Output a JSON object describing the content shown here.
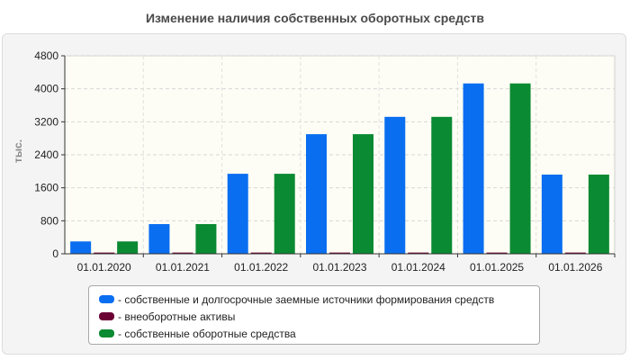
{
  "chart_data": {
    "type": "bar",
    "title": "Изменение наличия собственных оборотных средств",
    "ylabel": "тыс.",
    "xlabel": "",
    "ylim": [
      0,
      4800
    ],
    "yticks": [
      0,
      800,
      1600,
      2400,
      3200,
      4000,
      4800
    ],
    "grid": true,
    "legend_position": "bottom",
    "categories": [
      "01.01.2020",
      "01.01.2021",
      "01.01.2022",
      "01.01.2023",
      "01.01.2024",
      "01.01.2025",
      "01.01.2026"
    ],
    "series": [
      {
        "name": "- собственные и долгосрочные заемные источники формирования средств",
        "color": "#0a6ef0",
        "values": [
          300,
          720,
          1940,
          2900,
          3320,
          4130,
          1920
        ]
      },
      {
        "name": "- внеоборотные активы",
        "color": "#6b0034",
        "values": [
          30,
          30,
          30,
          30,
          30,
          30,
          30
        ]
      },
      {
        "name": "- собственные оборотные средства",
        "color": "#0a8a32",
        "values": [
          300,
          720,
          1940,
          2900,
          3320,
          4130,
          1920
        ]
      }
    ]
  }
}
